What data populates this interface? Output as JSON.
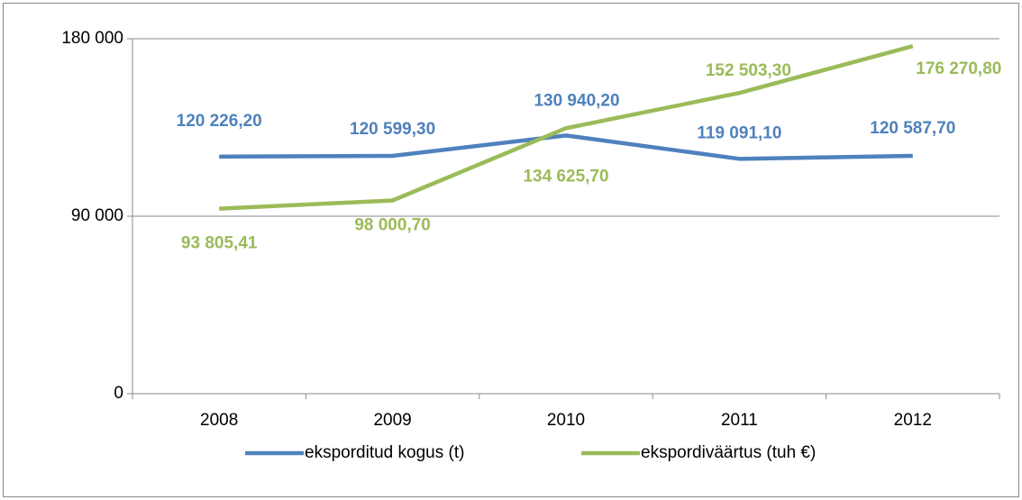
{
  "chart_data": {
    "type": "line",
    "categories": [
      "2008",
      "2009",
      "2010",
      "2011",
      "2012"
    ],
    "series": [
      {
        "name": "eksporditud kogus (t)",
        "color": "#4f81bd",
        "values": [
          120226.2,
          120599.3,
          130940.2,
          119091.1,
          120587.7
        ],
        "value_labels": [
          "120 226,20",
          "120 599,30",
          "130 940,20",
          "119 091,10",
          "120 587,70"
        ]
      },
      {
        "name": "ekspordiväärtus (tuh €)",
        "color": "#9bbb59",
        "values": [
          93805.41,
          98000.7,
          134625.7,
          152503.3,
          176270.8
        ],
        "value_labels": [
          "93 805,41",
          "98 000,70",
          "134 625,70",
          "152 503,30",
          "176 270,80"
        ]
      }
    ],
    "ylim": [
      0,
      180000
    ],
    "yticks": [
      {
        "value": 0,
        "label": "0"
      },
      {
        "value": 90000,
        "label": "90 000"
      },
      {
        "value": 180000,
        "label": "180 000"
      }
    ],
    "grid": true,
    "legend": "bottom"
  }
}
